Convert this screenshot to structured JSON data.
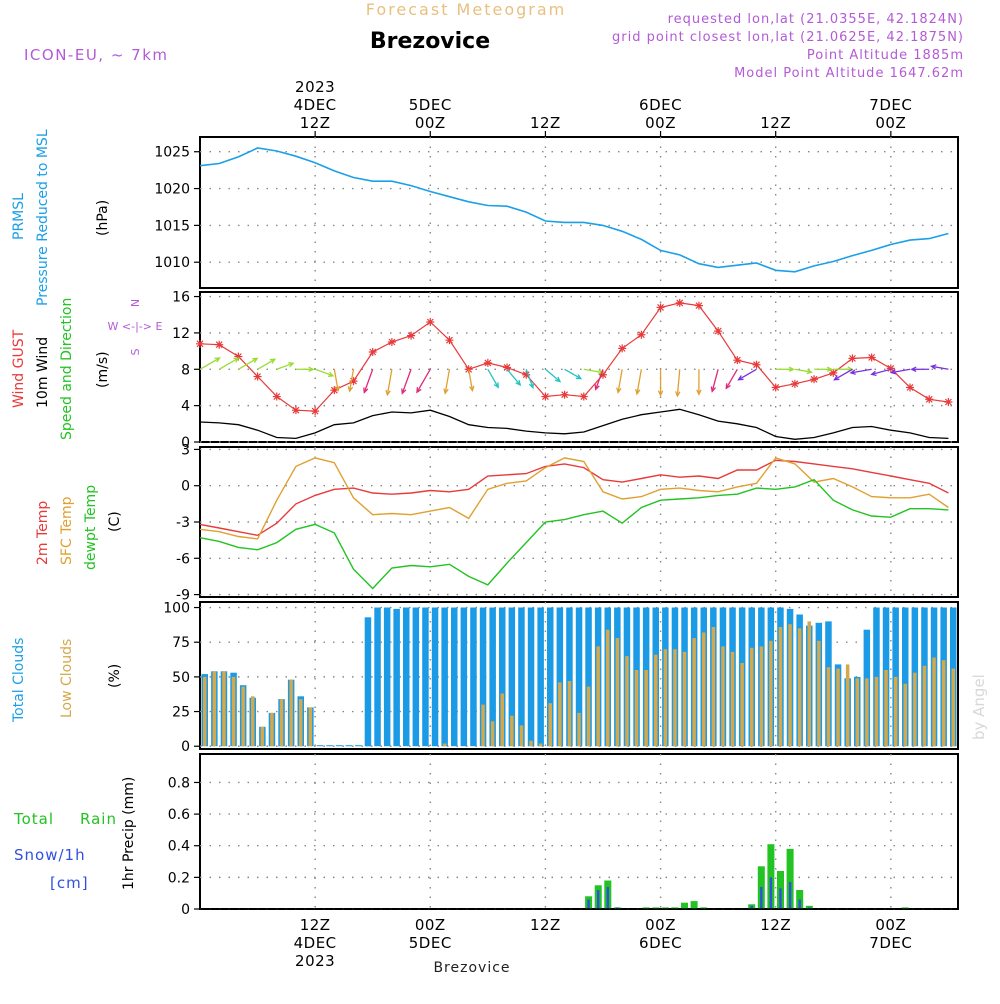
{
  "header": {
    "subtitle": "Forecast Meteogram",
    "location": "Brezovice",
    "model": "ICON-EU, ~ 7km",
    "requested": "requested lon,lat (21.0355E, 42.1824N)",
    "gridpoint": "grid point closest lon,lat (21.0625E, 42.1875N)",
    "point_altitude": "Point Altitude 1885m",
    "model_altitude": "Model Point Altitude 1647.62m",
    "watermark": "by Angel",
    "footer": "Brezovice"
  },
  "time_axis": {
    "start_hour": 0,
    "end_hour": 79,
    "comment_units": "hours after 2023-12-04 00Z",
    "ticks": [
      {
        "hour": 12,
        "top": [
          "2023",
          "4DEC",
          "12Z"
        ],
        "bottom": [
          "12Z",
          "4DEC",
          "2023"
        ]
      },
      {
        "hour": 24,
        "top": [
          "5DEC",
          "00Z"
        ],
        "bottom": [
          "00Z",
          "5DEC"
        ]
      },
      {
        "hour": 36,
        "top": [
          "12Z"
        ],
        "bottom": [
          "12Z"
        ]
      },
      {
        "hour": 48,
        "top": [
          "6DEC",
          "00Z"
        ],
        "bottom": [
          "00Z",
          "6DEC"
        ]
      },
      {
        "hour": 60,
        "top": [
          "12Z"
        ],
        "bottom": [
          "12Z"
        ]
      },
      {
        "hour": 72,
        "top": [
          "7DEC",
          "00Z"
        ],
        "bottom": [
          "00Z",
          "7DEC"
        ]
      }
    ]
  },
  "labels": {
    "p1": [
      "PRMSL",
      "Pressure Reduced to MSL",
      "(hPa)"
    ],
    "p2": [
      "Wind GUST",
      "10m Wind",
      "Speed and Direction",
      "(m/s)"
    ],
    "p2_compass": [
      "N",
      "W <-|-> E",
      "S"
    ],
    "p3": [
      "2m Temp",
      "SFC Temp",
      "dewpt Temp",
      "(C)"
    ],
    "p4": [
      "Total Clouds",
      "Low Clouds",
      "(%)"
    ],
    "p5_left": [
      "Total",
      "Rain",
      "Snow/1h",
      "[cm]"
    ],
    "p5_unit": "1hr Precip (mm)"
  },
  "colors": {
    "pressure": "#1ba0e6",
    "gust": "#e83a3a",
    "wind": "#000000",
    "temp2m": "#e83a3a",
    "sfc": "#e0a030",
    "dewpt": "#22c322",
    "total_clouds": "#1b9be6",
    "low_clouds": "#d4a84b",
    "rain": "#22c322",
    "snow": "#3050e0",
    "title": "#e8c080",
    "meta": "#b45ad6"
  },
  "chart_data": [
    {
      "type": "line",
      "title": "PRMSL Pressure Reduced to MSL",
      "ylabel": "(hPa)",
      "ylim": [
        1006.5,
        1027
      ],
      "yticks": [
        1010,
        1015,
        1020,
        1025
      ],
      "series": [
        {
          "name": "PRMSL",
          "x": [
            0,
            2,
            4,
            6,
            8,
            10,
            12,
            14,
            16,
            18,
            20,
            22,
            24,
            26,
            28,
            30,
            32,
            34,
            36,
            38,
            40,
            42,
            44,
            46,
            48,
            50,
            52,
            54,
            56,
            58,
            60,
            62,
            64,
            66,
            68,
            70,
            72,
            74,
            76,
            78
          ],
          "values": [
            1023.1,
            1023.4,
            1024.3,
            1025.5,
            1025.1,
            1024.4,
            1023.5,
            1022.4,
            1021.5,
            1021.0,
            1021.0,
            1020.4,
            1019.6,
            1018.9,
            1018.2,
            1017.7,
            1017.6,
            1016.8,
            1015.6,
            1015.4,
            1015.4,
            1015.0,
            1014.2,
            1013.1,
            1011.6,
            1011.0,
            1009.8,
            1009.3,
            1009.6,
            1009.9,
            1008.9,
            1008.7,
            1009.5,
            1010.1,
            1010.9,
            1011.6,
            1012.4,
            1013.0,
            1013.2,
            1013.9
          ]
        }
      ]
    },
    {
      "type": "line",
      "title": "Wind GUST / 10m Wind Speed and Direction",
      "ylabel": "(m/s)",
      "ylim": [
        0,
        16.5
      ],
      "yticks": [
        0,
        4,
        8,
        12,
        16
      ],
      "series": [
        {
          "name": "Wind GUST",
          "x": [
            0,
            2,
            4,
            6,
            8,
            10,
            12,
            14,
            16,
            18,
            20,
            22,
            24,
            26,
            28,
            30,
            32,
            34,
            36,
            38,
            40,
            42,
            44,
            46,
            48,
            50,
            52,
            54,
            56,
            58,
            60,
            62,
            64,
            66,
            68,
            70,
            72,
            74,
            76,
            78
          ],
          "values": [
            10.8,
            10.7,
            9.4,
            7.2,
            5.0,
            3.5,
            3.4,
            5.7,
            6.7,
            9.9,
            11.0,
            11.7,
            13.2,
            11.2,
            8.0,
            8.7,
            8.2,
            7.4,
            5.0,
            5.2,
            5.0,
            7.4,
            10.3,
            11.8,
            14.8,
            15.3,
            15.0,
            12.2,
            9.0,
            8.5,
            6.0,
            6.4,
            6.9,
            7.6,
            9.2,
            9.3,
            8.1,
            6.0,
            4.7,
            4.4
          ]
        },
        {
          "name": "10m Wind",
          "x": [
            0,
            2,
            4,
            6,
            8,
            10,
            12,
            14,
            16,
            18,
            20,
            22,
            24,
            26,
            28,
            30,
            32,
            34,
            36,
            38,
            40,
            42,
            44,
            46,
            48,
            50,
            52,
            54,
            56,
            58,
            60,
            62,
            64,
            66,
            68,
            70,
            72,
            74,
            76,
            78
          ],
          "values": [
            2.2,
            2.1,
            1.9,
            1.3,
            0.5,
            0.4,
            1.0,
            1.9,
            2.1,
            2.9,
            3.3,
            3.2,
            3.5,
            2.8,
            1.9,
            1.6,
            1.5,
            1.2,
            1.0,
            0.9,
            1.1,
            1.8,
            2.5,
            3.0,
            3.3,
            3.6,
            3.0,
            2.3,
            2.0,
            1.6,
            0.6,
            0.3,
            0.5,
            1.0,
            1.6,
            1.7,
            1.3,
            1.0,
            0.5,
            0.4
          ]
        }
      ],
      "wind_dir_deg": [
        240,
        240,
        240,
        240,
        250,
        270,
        290,
        350,
        10,
        20,
        10,
        20,
        30,
        10,
        350,
        330,
        320,
        340,
        310,
        300,
        280,
        20,
        10,
        10,
        0,
        5,
        0,
        15,
        30,
        60,
        270,
        280,
        270,
        270,
        60,
        80,
        75,
        80,
        90,
        100
      ]
    },
    {
      "type": "line",
      "title": "2m Temp / SFC Temp / dewpt Temp",
      "ylabel": "(C)",
      "ylim": [
        -9.2,
        3.2
      ],
      "yticks": [
        -9,
        -6,
        -3,
        0,
        3
      ],
      "series": [
        {
          "name": "2m Temp",
          "x": [
            0,
            2,
            4,
            6,
            8,
            10,
            12,
            14,
            16,
            18,
            20,
            22,
            24,
            26,
            28,
            30,
            32,
            34,
            36,
            38,
            40,
            42,
            44,
            46,
            48,
            50,
            52,
            54,
            56,
            58,
            60,
            62,
            64,
            66,
            68,
            70,
            72,
            74,
            76,
            78
          ],
          "values": [
            -3.2,
            -3.5,
            -3.8,
            -4.1,
            -3.1,
            -1.5,
            -0.8,
            -0.3,
            -0.2,
            -0.6,
            -0.7,
            -0.6,
            -0.4,
            -0.5,
            -0.3,
            0.8,
            0.9,
            1.0,
            1.6,
            1.8,
            1.5,
            0.5,
            0.3,
            0.6,
            0.9,
            0.7,
            0.8,
            0.6,
            1.3,
            1.3,
            2.1,
            2.0,
            1.8,
            1.6,
            1.4,
            1.1,
            0.8,
            0.5,
            0.2,
            -0.6
          ]
        },
        {
          "name": "SFC Temp",
          "x": [
            0,
            2,
            4,
            6,
            8,
            10,
            12,
            14,
            16,
            18,
            20,
            22,
            24,
            26,
            28,
            30,
            32,
            34,
            36,
            38,
            40,
            42,
            44,
            46,
            48,
            50,
            52,
            54,
            56,
            58,
            60,
            62,
            64,
            66,
            68,
            70,
            72,
            74,
            76,
            78
          ],
          "values": [
            -3.6,
            -3.8,
            -4.2,
            -4.4,
            -1.2,
            1.6,
            2.3,
            1.9,
            -1.0,
            -2.4,
            -2.3,
            -2.4,
            -2.1,
            -1.8,
            -2.7,
            -0.3,
            0.2,
            0.4,
            1.5,
            2.3,
            2.0,
            -0.5,
            -1.1,
            -0.9,
            -0.3,
            -0.2,
            -0.4,
            -0.5,
            -0.1,
            0.2,
            2.3,
            1.8,
            0.3,
            0.6,
            -0.1,
            -0.9,
            -1.0,
            -1.0,
            -0.7,
            -1.8
          ]
        },
        {
          "name": "dewpt Temp",
          "x": [
            0,
            2,
            4,
            6,
            8,
            10,
            12,
            14,
            16,
            18,
            20,
            22,
            24,
            26,
            28,
            30,
            32,
            34,
            36,
            38,
            40,
            42,
            44,
            46,
            48,
            50,
            52,
            54,
            56,
            58,
            60,
            62,
            64,
            66,
            68,
            70,
            72,
            74,
            76,
            78
          ],
          "values": [
            -4.3,
            -4.6,
            -5.1,
            -5.3,
            -4.7,
            -3.6,
            -3.2,
            -3.9,
            -6.9,
            -8.5,
            -6.8,
            -6.6,
            -6.7,
            -6.5,
            -7.5,
            -8.2,
            -6.4,
            -4.7,
            -3.0,
            -2.8,
            -2.4,
            -2.1,
            -3.1,
            -1.8,
            -1.2,
            -1.1,
            -1.0,
            -0.8,
            -0.7,
            -0.2,
            -0.3,
            -0.1,
            0.5,
            -1.2,
            -2.0,
            -2.5,
            -2.6,
            -1.9,
            -1.9,
            -2.0
          ]
        }
      ]
    },
    {
      "type": "bar",
      "title": "Total Clouds / Low Clouds",
      "ylabel": "(%)",
      "ylim": [
        -2,
        104
      ],
      "yticks": [
        0,
        25,
        50,
        75,
        100
      ],
      "x": [
        0,
        1,
        2,
        3,
        4,
        5,
        6,
        7,
        8,
        9,
        10,
        11,
        12,
        13,
        14,
        15,
        16,
        17,
        18,
        19,
        20,
        21,
        22,
        23,
        24,
        25,
        26,
        27,
        28,
        29,
        30,
        31,
        32,
        33,
        34,
        35,
        36,
        37,
        38,
        39,
        40,
        41,
        42,
        43,
        44,
        45,
        46,
        47,
        48,
        49,
        50,
        51,
        52,
        53,
        54,
        55,
        56,
        57,
        58,
        59,
        60,
        61,
        62,
        63,
        64,
        65,
        66,
        67,
        68,
        69,
        70,
        71,
        72,
        73,
        74,
        75,
        76,
        77,
        78
      ],
      "series": [
        {
          "name": "Total Clouds",
          "values": [
            52,
            54,
            54,
            53,
            44,
            35,
            14,
            24,
            34,
            48,
            36,
            28,
            0,
            0,
            0,
            0,
            0,
            93,
            100,
            100,
            99,
            100,
            100,
            100,
            100,
            100,
            100,
            100,
            100,
            100,
            100,
            100,
            100,
            100,
            100,
            100,
            100,
            100,
            100,
            100,
            100,
            100,
            100,
            100,
            100,
            100,
            100,
            100,
            100,
            100,
            100,
            100,
            100,
            100,
            100,
            100,
            100,
            100,
            100,
            100,
            100,
            99,
            95,
            87,
            89,
            90,
            59,
            49,
            50,
            84,
            100,
            100,
            100,
            100,
            100,
            100,
            100,
            100,
            100
          ]
        },
        {
          "name": "Low Clouds",
          "values": [
            50,
            54,
            54,
            50,
            43,
            36,
            14,
            24,
            34,
            48,
            34,
            28,
            0,
            0,
            0,
            0,
            0,
            0,
            0,
            0,
            0,
            0,
            0,
            0,
            0,
            2,
            0,
            0,
            0,
            30,
            18,
            38,
            22,
            15,
            4,
            2,
            31,
            46,
            47,
            24,
            43,
            72,
            84,
            78,
            65,
            55,
            55,
            66,
            70,
            70,
            68,
            78,
            82,
            86,
            72,
            68,
            60,
            71,
            72,
            76,
            86,
            88,
            85,
            90,
            76,
            57,
            56,
            59,
            49,
            49,
            50,
            55,
            50,
            45,
            53,
            58,
            64,
            62,
            56
          ]
        }
      ]
    },
    {
      "type": "bar",
      "title": "1hr Precip (mm)",
      "ylabel": "1hr Precip (mm)",
      "ylim": [
        0,
        0.98
      ],
      "yticks": [
        0,
        0.2,
        0.4,
        0.6,
        0.8
      ],
      "series": [
        {
          "name": "Total Rain",
          "x": [
            40,
            41,
            42,
            43,
            46,
            47,
            48,
            49,
            50,
            51,
            52,
            57,
            58,
            59,
            60,
            61,
            62,
            63,
            73
          ],
          "values": [
            0.08,
            0.15,
            0.18,
            0.01,
            0.01,
            0.01,
            0.01,
            0.01,
            0.04,
            0.05,
            0.01,
            0.03,
            0.27,
            0.41,
            0.24,
            0.38,
            0.12,
            0.02,
            0.01
          ]
        },
        {
          "name": "Snow/1h",
          "x": [
            40,
            41,
            42,
            43,
            57,
            58,
            59,
            60,
            61,
            62,
            63
          ],
          "values": [
            0.06,
            0.12,
            0.14,
            0.01,
            0.02,
            0.14,
            0.2,
            0.13,
            0.17,
            0.06,
            0.01
          ]
        }
      ]
    }
  ]
}
